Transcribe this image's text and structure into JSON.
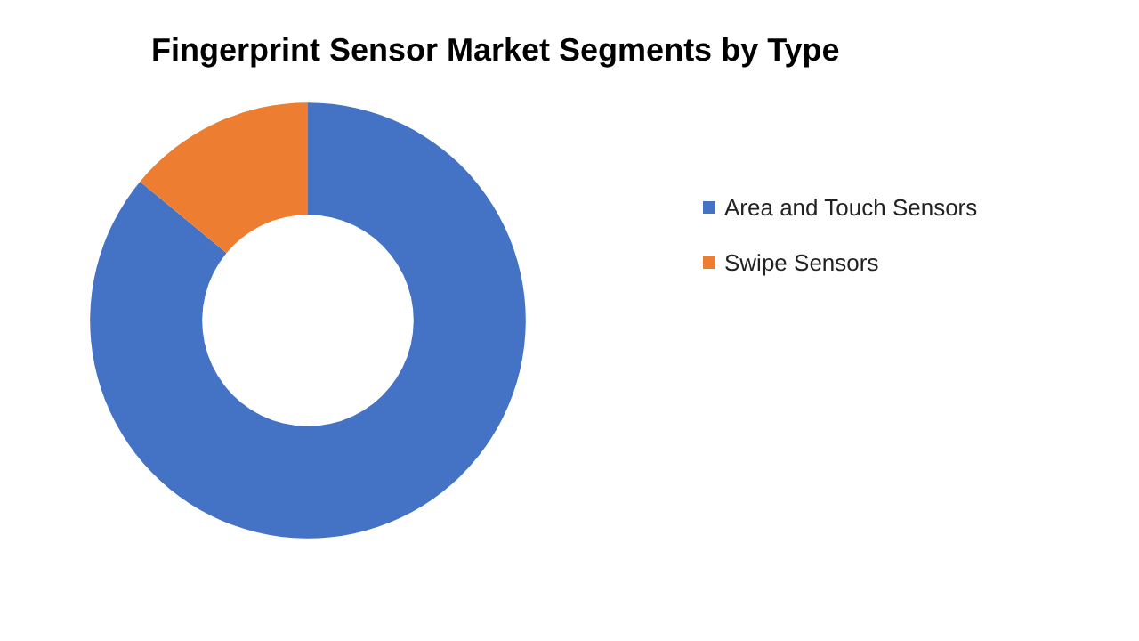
{
  "chart_data": {
    "type": "donut",
    "title": "Fingerprint Sensor Market Segments by Type",
    "categories": [
      "Area and Touch Sensors",
      "Swipe Sensors"
    ],
    "values": [
      86,
      14
    ],
    "colors": [
      "#4472c4",
      "#ed7d31"
    ],
    "legend": "right"
  }
}
